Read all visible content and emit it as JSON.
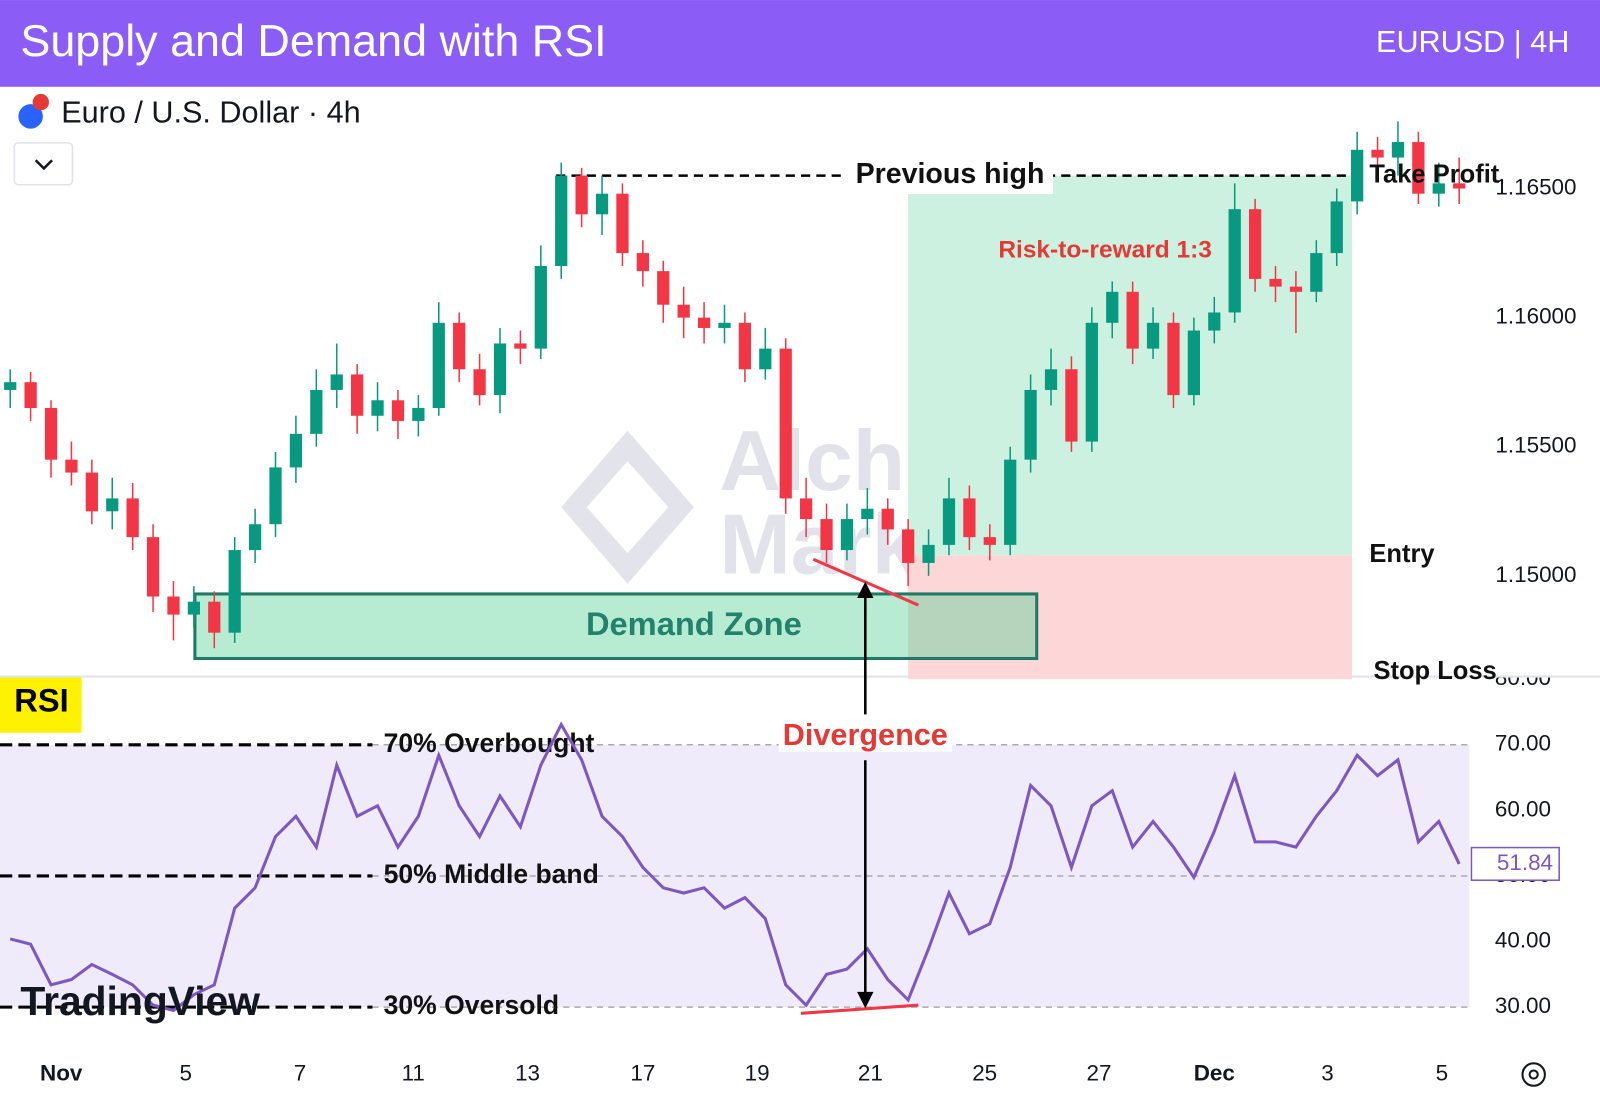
{
  "header": {
    "title": "Supply and Demand with RSI",
    "badge": "EURUSD | 4H"
  },
  "symbol": "Euro / U.S. Dollar · 4h",
  "watermark": {
    "alchemy": [
      "Alchemy",
      "Markets"
    ],
    "tradingview": "TradingView"
  },
  "chart_data": [
    {
      "type": "candlestick",
      "up_color": "#089981",
      "down_color": "#f23645",
      "candles": [
        [
          1.1572,
          1.158,
          1.1565,
          1.1575
        ],
        [
          1.1575,
          1.1579,
          1.156,
          1.1565
        ],
        [
          1.1565,
          1.1568,
          1.1538,
          1.1545
        ],
        [
          1.1545,
          1.1552,
          1.1535,
          1.154
        ],
        [
          1.154,
          1.1545,
          1.152,
          1.1525
        ],
        [
          1.1525,
          1.1538,
          1.1518,
          1.153
        ],
        [
          1.153,
          1.1536,
          1.151,
          1.1515
        ],
        [
          1.1515,
          1.152,
          1.1486,
          1.1492
        ],
        [
          1.1492,
          1.1498,
          1.1475,
          1.1485
        ],
        [
          1.1485,
          1.1496,
          1.148,
          1.149
        ],
        [
          1.149,
          1.1494,
          1.1472,
          1.1478
        ],
        [
          1.1478,
          1.1515,
          1.1474,
          1.151
        ],
        [
          1.151,
          1.1526,
          1.1505,
          1.152
        ],
        [
          1.152,
          1.1548,
          1.1515,
          1.1542
        ],
        [
          1.1542,
          1.1562,
          1.1536,
          1.1555
        ],
        [
          1.1555,
          1.158,
          1.155,
          1.1572
        ],
        [
          1.1572,
          1.159,
          1.1565,
          1.1578
        ],
        [
          1.1578,
          1.1582,
          1.1555,
          1.1562
        ],
        [
          1.1562,
          1.1575,
          1.1556,
          1.1568
        ],
        [
          1.1568,
          1.1572,
          1.1553,
          1.156
        ],
        [
          1.156,
          1.157,
          1.1554,
          1.1565
        ],
        [
          1.1565,
          1.1606,
          1.1562,
          1.1598
        ],
        [
          1.1598,
          1.1602,
          1.1575,
          1.158
        ],
        [
          1.158,
          1.1586,
          1.1566,
          1.157
        ],
        [
          1.157,
          1.1596,
          1.1563,
          1.159
        ],
        [
          1.159,
          1.1595,
          1.1582,
          1.1588
        ],
        [
          1.1588,
          1.1628,
          1.1584,
          1.162
        ],
        [
          1.162,
          1.166,
          1.1615,
          1.1655
        ],
        [
          1.1655,
          1.1658,
          1.1635,
          1.164
        ],
        [
          1.164,
          1.1655,
          1.1632,
          1.1648
        ],
        [
          1.1648,
          1.1652,
          1.162,
          1.1625
        ],
        [
          1.1625,
          1.163,
          1.1612,
          1.1618
        ],
        [
          1.1618,
          1.1622,
          1.1598,
          1.1605
        ],
        [
          1.1605,
          1.1612,
          1.1592,
          1.16
        ],
        [
          1.16,
          1.1606,
          1.159,
          1.1596
        ],
        [
          1.1596,
          1.1605,
          1.159,
          1.1598
        ],
        [
          1.1598,
          1.1602,
          1.1575,
          1.158
        ],
        [
          1.158,
          1.1596,
          1.1576,
          1.1588
        ],
        [
          1.1588,
          1.1592,
          1.1524,
          1.153
        ],
        [
          1.153,
          1.1538,
          1.1515,
          1.1522
        ],
        [
          1.1522,
          1.1528,
          1.1505,
          1.151
        ],
        [
          1.151,
          1.1528,
          1.1506,
          1.1522
        ],
        [
          1.1522,
          1.1534,
          1.1516,
          1.1526
        ],
        [
          1.1526,
          1.153,
          1.1512,
          1.1518
        ],
        [
          1.1518,
          1.1522,
          1.1496,
          1.1505
        ],
        [
          1.1505,
          1.1518,
          1.15,
          1.1512
        ],
        [
          1.1512,
          1.1538,
          1.1508,
          1.153
        ],
        [
          1.153,
          1.1535,
          1.151,
          1.1515
        ],
        [
          1.1515,
          1.152,
          1.1506,
          1.1512
        ],
        [
          1.1512,
          1.155,
          1.1508,
          1.1545
        ],
        [
          1.1545,
          1.1578,
          1.154,
          1.1572
        ],
        [
          1.1572,
          1.1588,
          1.1566,
          1.158
        ],
        [
          1.158,
          1.1585,
          1.1548,
          1.1552
        ],
        [
          1.1552,
          1.1604,
          1.1548,
          1.1598
        ],
        [
          1.1598,
          1.1614,
          1.1592,
          1.161
        ],
        [
          1.161,
          1.1614,
          1.1582,
          1.1588
        ],
        [
          1.1588,
          1.1604,
          1.1584,
          1.1598
        ],
        [
          1.1598,
          1.1602,
          1.1565,
          1.157
        ],
        [
          1.157,
          1.16,
          1.1566,
          1.1595
        ],
        [
          1.1595,
          1.1608,
          1.159,
          1.1602
        ],
        [
          1.1602,
          1.1652,
          1.1598,
          1.1642
        ],
        [
          1.1642,
          1.1646,
          1.161,
          1.1615
        ],
        [
          1.1615,
          1.162,
          1.1606,
          1.1612
        ],
        [
          1.1612,
          1.1618,
          1.1594,
          1.161
        ],
        [
          1.161,
          1.163,
          1.1606,
          1.1625
        ],
        [
          1.1625,
          1.165,
          1.162,
          1.1645
        ],
        [
          1.1645,
          1.1672,
          1.164,
          1.1665
        ],
        [
          1.1665,
          1.167,
          1.1655,
          1.1662
        ],
        [
          1.1662,
          1.1676,
          1.1655,
          1.1668
        ],
        [
          1.1668,
          1.1672,
          1.1644,
          1.1648
        ],
        [
          1.1648,
          1.166,
          1.1643,
          1.1652
        ],
        [
          1.1652,
          1.1662,
          1.1644,
          1.165
        ]
      ],
      "xlim": [
        -0.5,
        71.5
      ],
      "xticks": [
        {
          "value": 2.5,
          "label": "Nov"
        },
        {
          "value": 8.6,
          "label": "5"
        },
        {
          "value": 14.2,
          "label": "7"
        },
        {
          "value": 19.75,
          "label": "11"
        },
        {
          "value": 25.35,
          "label": "13"
        },
        {
          "value": 31,
          "label": "17"
        },
        {
          "value": 36.6,
          "label": "19"
        },
        {
          "value": 42.15,
          "label": "21"
        },
        {
          "value": 47.75,
          "label": "25"
        },
        {
          "value": 53.35,
          "label": "27"
        },
        {
          "value": 59,
          "label": "Dec"
        },
        {
          "value": 64.55,
          "label": "3"
        },
        {
          "value": 70.15,
          "label": "5"
        }
      ],
      "ylim": [
        1.1461,
        1.1689
      ],
      "yticks": [
        {
          "value": 1.15,
          "label": "1.15000"
        },
        {
          "value": 1.155,
          "label": "1.15500"
        },
        {
          "value": 1.16,
          "label": "1.16000"
        },
        {
          "value": 1.165,
          "label": "1.16500"
        }
      ],
      "previous_high": {
        "text": "Previous high",
        "value": 1.1655
      },
      "demand_zone": {
        "text": "Demand Zone",
        "top": 1.1493,
        "bottom": 1.1468
      },
      "position": {
        "take_profit": {
          "label": "Take Profit",
          "value": 1.1655
        },
        "entry": {
          "label": "Entry",
          "value": 1.1508
        },
        "stop_loss": {
          "label": "Stop Loss",
          "value": 1.146
        },
        "ratio_label": "Risk-to-reward 1:3"
      }
    },
    {
      "type": "line",
      "label": "RSI",
      "color": "#7e57c2",
      "values": [
        40.4,
        39.6,
        33.4,
        34.2,
        36.5,
        35,
        33.4,
        30.3,
        29.5,
        31.9,
        33.4,
        45.1,
        48.2,
        56,
        59.1,
        54.4,
        66.9,
        59.1,
        60.7,
        54.4,
        59.1,
        68.4,
        60.7,
        56,
        62.2,
        57.5,
        66.9,
        73.1,
        67.7,
        59.1,
        56,
        51.3,
        48.2,
        47.4,
        48.2,
        45.1,
        46.7,
        43.5,
        33.4,
        30.3,
        35,
        35.8,
        38.9,
        34.2,
        31.1,
        38.9,
        47.4,
        41.2,
        42.7,
        51.3,
        63.8,
        60.7,
        51.3,
        60.7,
        63,
        54.4,
        58.3,
        54.4,
        49.8,
        56.8,
        65.3,
        55.2,
        55.2,
        54.4,
        59.1,
        63,
        68.4,
        65.3,
        67.7,
        55.2,
        58.3,
        51.84
      ],
      "ylim": [
        23.3,
        80.4
      ],
      "yticks": [
        {
          "value": 30,
          "label": "30.00"
        },
        {
          "value": 40,
          "label": "40.00"
        },
        {
          "value": 50,
          "label": "50.00"
        },
        {
          "value": 60,
          "label": "60.00"
        },
        {
          "value": 70,
          "label": "70.00"
        },
        {
          "value": 80,
          "label": "80.00"
        }
      ],
      "levels": [
        {
          "value": 70,
          "text": "70% Overbought"
        },
        {
          "value": 50,
          "text": "50% Middle band"
        },
        {
          "value": 30,
          "text": "30% Oversold"
        }
      ],
      "annotation": "Divergence"
    }
  ]
}
